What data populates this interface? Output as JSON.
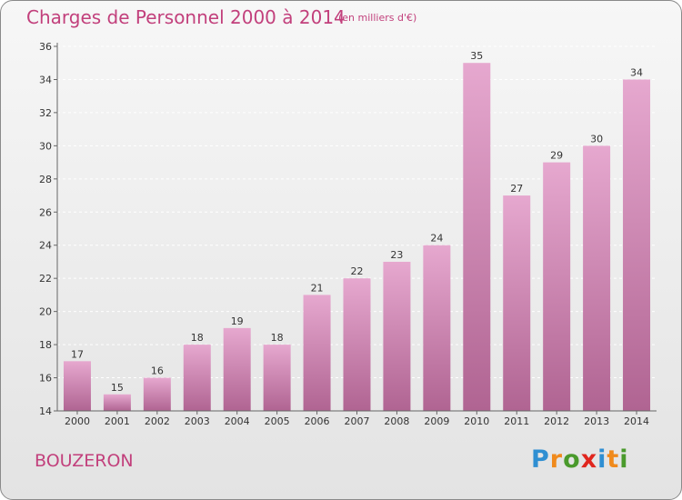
{
  "header": {
    "title": "Charges de Personnel 2000 à 2014",
    "subtitle": "(en milliers d'€)"
  },
  "footer": {
    "place": "BOUZERON",
    "logo_text": "Proxiti",
    "logo_letters": [
      "P",
      "r",
      "o",
      "x",
      "i",
      "t",
      "i"
    ],
    "logo_colors": [
      "#2f8fd2",
      "#f08a1c",
      "#4a9a2c",
      "#e0261e",
      "#2f8fd2",
      "#f08a1c",
      "#4a9a2c"
    ]
  },
  "colors": {
    "title": "#c2407c",
    "bar_top": "#e6a8cf",
    "bar_bottom": "#b06492",
    "axis": "#666666",
    "grid": "#ffffff"
  },
  "chart_data": {
    "type": "bar",
    "categories": [
      "2000",
      "2001",
      "2002",
      "2003",
      "2004",
      "2005",
      "2006",
      "2007",
      "2008",
      "2009",
      "2010",
      "2011",
      "2012",
      "2013",
      "2014"
    ],
    "values": [
      17,
      15,
      16,
      18,
      19,
      18,
      21,
      22,
      23,
      24,
      35,
      27,
      29,
      30,
      34
    ],
    "data_labels": [
      "17",
      "15",
      "16",
      "18",
      "19",
      "18",
      "21",
      "22",
      "23",
      "24",
      "35",
      "27",
      "29",
      "30",
      "34"
    ],
    "ylim": [
      14,
      36
    ],
    "yticks": [
      14,
      16,
      18,
      20,
      22,
      24,
      26,
      28,
      30,
      32,
      34,
      36
    ],
    "grid": "horizontal dashed",
    "legend": "none"
  }
}
